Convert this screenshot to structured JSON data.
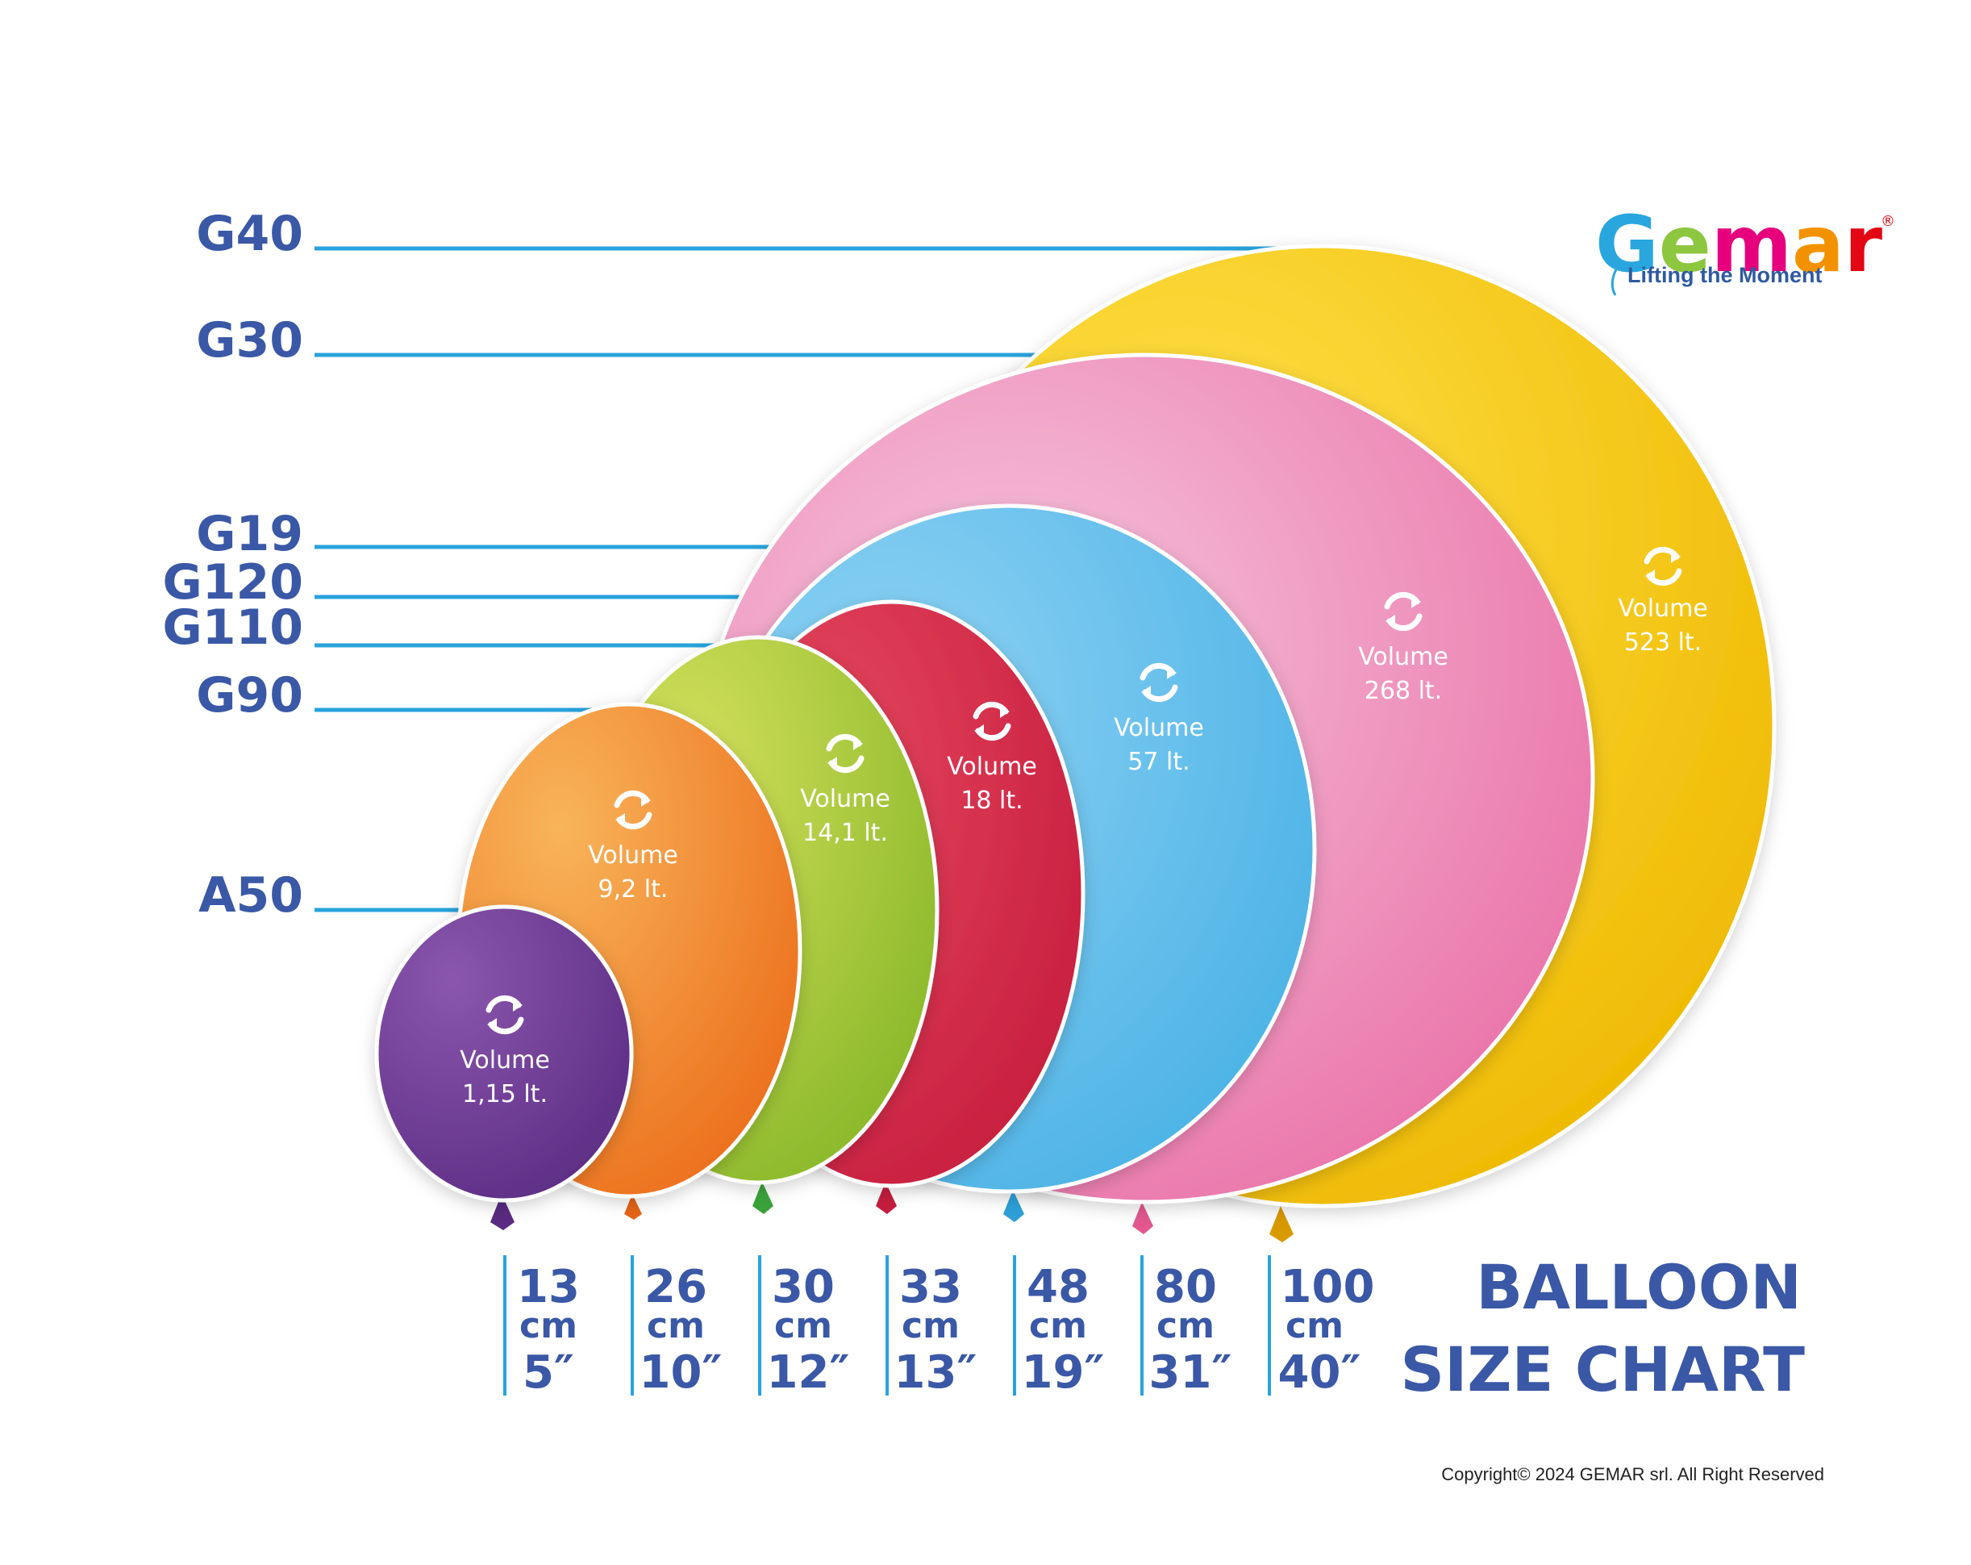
{
  "brand": {
    "letters": [
      {
        "char": "G",
        "color": "#2aa6de"
      },
      {
        "char": "e",
        "color": "#8dc63f"
      },
      {
        "char": "m",
        "color": "#e6007e"
      },
      {
        "char": "a",
        "color": "#f39200"
      },
      {
        "char": "r",
        "color": "#e30613"
      }
    ],
    "registered": "®",
    "tagline": "Lifting the Moment"
  },
  "title_lines": [
    "BALLOON",
    "SIZE CHART"
  ],
  "copyright": "Copyright© 2024 GEMAR srl. All Right Reserved",
  "volume_word": "Volume",
  "icon": "refresh-cycle-icon",
  "size_labels": [
    "G40",
    "G30",
    "G19",
    "G120",
    "G110",
    "G90",
    "A50"
  ],
  "balloons": [
    {
      "id": "a50",
      "volume": "1,15 lt.",
      "cm": "13",
      "inch": "5″",
      "color": "#6b3a96"
    },
    {
      "id": "g90",
      "volume": "9,2 lt.",
      "cm": "26",
      "inch": "10″",
      "color": "#f08b2b"
    },
    {
      "id": "g110",
      "volume": "14,1 lt.",
      "cm": "30",
      "inch": "12″",
      "color": "#9ec23a"
    },
    {
      "id": "g120",
      "volume": "18 lt.",
      "cm": "33",
      "inch": "13″",
      "color": "#d8334e"
    },
    {
      "id": "g19",
      "volume": "57 lt.",
      "cm": "48",
      "inch": "19″",
      "color": "#6cc3ec"
    },
    {
      "id": "g30",
      "volume": "268 lt.",
      "cm": "80",
      "inch": "31″",
      "color": "#ee89b6"
    },
    {
      "id": "g40",
      "volume": "523 lt.",
      "cm": "100",
      "inch": "40″",
      "color": "#f5c400"
    }
  ],
  "unit_cm": "cm",
  "colors": {
    "label_blue": "#3a58a6",
    "leader_line": "#29a3dc"
  }
}
